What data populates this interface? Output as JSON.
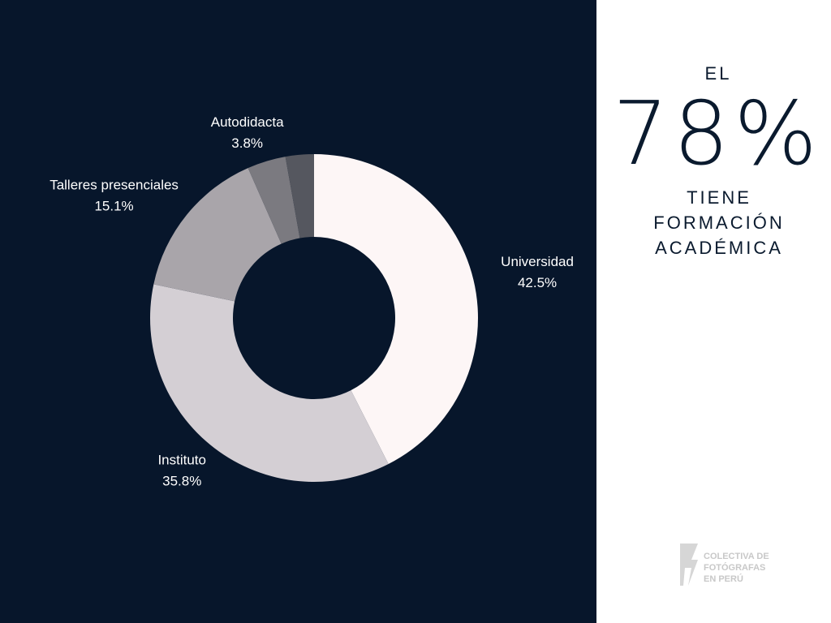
{
  "chart_data": {
    "type": "donut",
    "categories": [
      "Universidad",
      "Instituto",
      "Talleres presenciales",
      "Autodidacta",
      null
    ],
    "values": [
      42.5,
      35.8,
      15.1,
      3.8,
      2.8
    ],
    "value_labels": [
      "42.5%",
      "35.8%",
      "15.1%",
      "3.8%",
      null
    ],
    "colors": [
      "#fdf6f6",
      "#d4cfd4",
      "#a9a5aa",
      "#7b7a80",
      "#55575f"
    ]
  },
  "side_panel": {
    "lead": "EL",
    "figure": "78%",
    "lines": [
      "TIENE",
      "FORMACIÓN",
      "ACADÉMICA"
    ]
  },
  "logo": {
    "lines": [
      "COLECTIVA DE",
      "FOTÓGRAFAS",
      "EN PERÚ"
    ]
  }
}
